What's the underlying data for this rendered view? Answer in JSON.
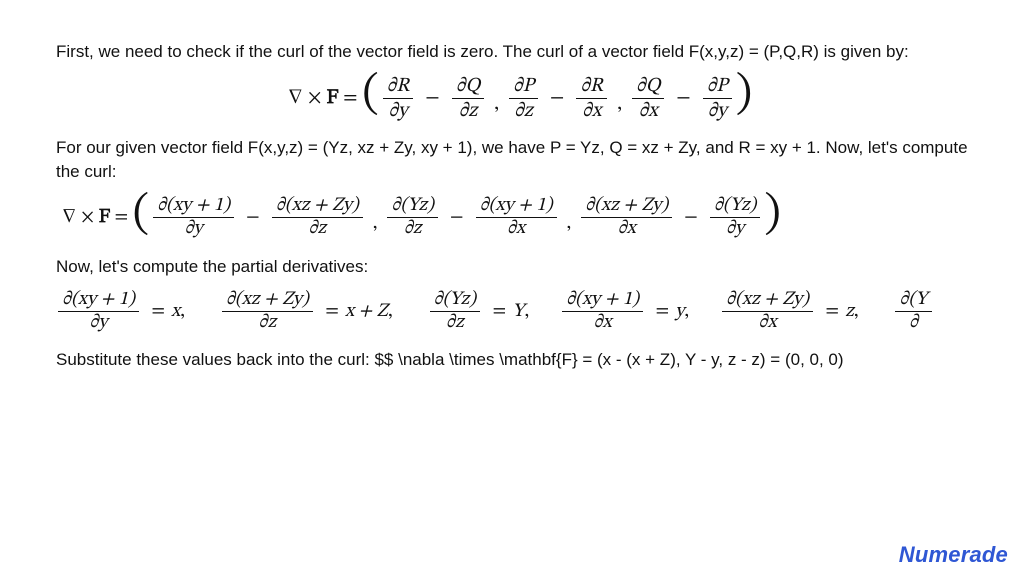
{
  "colors": {
    "text": "#111111",
    "background": "#ffffff",
    "rule": "#111111",
    "logo": "#2f57d4"
  },
  "text": {
    "p1": "First, we need to check if the curl of the vector field is zero. The curl of a vector field F(x,y,z) = (P,Q,R) is given by:",
    "p2": "For our given vector field F(x,y,z) = (Yz, xz + Zy, xy + 1), we have P = Yz, Q = xz + Zy, and R = xy + 1. Now, let's compute the curl:",
    "p3": "Now, let's compute the partial derivatives:",
    "p4": "Substitute these values back into the curl: $$ \\nabla \\times \\mathbf{F} = (x - (x + Z), Y - y, z - z) = (0, 0, 0)"
  },
  "math": {
    "lede": {
      "nabla": "∇",
      "times": "×",
      "F": "F",
      "eq": "="
    },
    "partial": "∂",
    "curl_general": [
      {
        "num1": "∂R",
        "den1": "∂y",
        "num2": "∂Q",
        "den2": "∂z"
      },
      {
        "num1": "∂P",
        "den1": "∂z",
        "num2": "∂R",
        "den2": "∂x"
      },
      {
        "num1": "∂Q",
        "den1": "∂x",
        "num2": "∂P",
        "den2": "∂y"
      }
    ],
    "curl_specific": [
      {
        "num1": "∂(xy + 1)",
        "den1": "∂y",
        "num2": "∂(xz + Zy)",
        "den2": "∂z"
      },
      {
        "num1": "∂(Yz)",
        "den1": "∂z",
        "num2": "∂(xy + 1)",
        "den2": "∂x"
      },
      {
        "num1": "∂(xz + Zy)",
        "den1": "∂x",
        "num2": "∂(Yz)",
        "den2": "∂y"
      }
    ],
    "partials_list": [
      {
        "num": "∂(xy + 1)",
        "den": "∂y",
        "rhs": "x"
      },
      {
        "num": "∂(xz + Zy)",
        "den": "∂z",
        "rhs": "x + Z"
      },
      {
        "num": "∂(Yz)",
        "den": "∂z",
        "rhs": "Y"
      },
      {
        "num": "∂(xy + 1)",
        "den": "∂x",
        "rhs": "y"
      },
      {
        "num": "∂(xz + Zy)",
        "den": "∂x",
        "rhs": "z"
      },
      {
        "num": "∂(Y",
        "den": "∂",
        "rhs": null
      }
    ]
  },
  "logo": "Numerade"
}
